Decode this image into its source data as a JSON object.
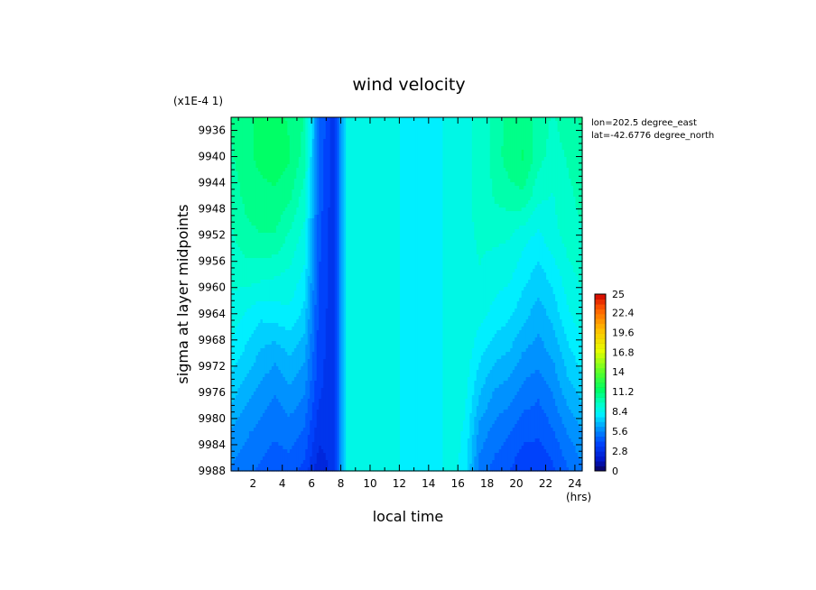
{
  "chart_data": {
    "type": "heatmap",
    "title": "wind velocity",
    "xlabel": "local time",
    "ylabel": "sigma at layer midpoints",
    "x_unit": "(hrs)",
    "y_scale_note": "(x1E-4 1)",
    "info": [
      "lon=202.5 degree_east",
      "lat=-42.6776 degree_north"
    ],
    "xlim": [
      0.5,
      24.5
    ],
    "ylim": [
      9988,
      9934
    ],
    "x_ticks": [
      "2",
      "4",
      "6",
      "8",
      "10",
      "12",
      "14",
      "16",
      "18",
      "20",
      "22",
      "24"
    ],
    "y_ticks": [
      "9936",
      "9940",
      "9944",
      "9948",
      "9952",
      "9956",
      "9960",
      "9964",
      "9968",
      "9972",
      "9976",
      "9980",
      "9984",
      "9988"
    ],
    "x": [
      0.5,
      1.5,
      2.5,
      3.5,
      4.5,
      5.5,
      6.5,
      7.5,
      8.5,
      9.5,
      10.5,
      11.5,
      12.5,
      13.5,
      14.5,
      15.5,
      16.5,
      17.5,
      18.5,
      19.5,
      20.5,
      21.5,
      22.5,
      23.5,
      24.5
    ],
    "y": [
      9934,
      9940,
      9946,
      9952,
      9958,
      9964,
      9970,
      9976,
      9982,
      9988
    ],
    "z": [
      [
        10.5,
        11.0,
        11.2,
        11.4,
        11.0,
        10.4,
        5.0,
        3.0,
        9.0,
        9.0,
        9.0,
        9.0,
        7.8,
        7.7,
        7.8,
        8.8,
        8.9,
        9.2,
        10.0,
        10.7,
        10.8,
        10.2,
        9.6,
        10.2,
        10.5
      ],
      [
        10.3,
        10.9,
        11.3,
        11.5,
        11.2,
        10.1,
        4.8,
        3.0,
        9.0,
        9.0,
        9.0,
        9.0,
        7.8,
        7.7,
        7.8,
        8.8,
        8.9,
        9.2,
        10.0,
        10.8,
        11.2,
        10.0,
        9.4,
        9.8,
        10.3
      ],
      [
        10.0,
        10.6,
        10.9,
        11.0,
        10.6,
        9.4,
        4.6,
        3.0,
        9.0,
        9.0,
        9.0,
        9.0,
        7.8,
        7.7,
        7.8,
        8.8,
        8.9,
        9.2,
        9.8,
        10.1,
        10.3,
        9.2,
        9.0,
        9.5,
        10.0
      ],
      [
        9.6,
        10.2,
        10.4,
        10.4,
        9.6,
        8.8,
        4.4,
        3.0,
        9.0,
        9.0,
        9.0,
        9.0,
        7.8,
        7.7,
        7.8,
        8.8,
        8.9,
        9.1,
        9.2,
        9.1,
        8.6,
        8.2,
        8.8,
        9.3,
        9.6
      ],
      [
        9.2,
        9.4,
        9.3,
        9.1,
        8.9,
        8.2,
        4.2,
        3.0,
        9.0,
        9.0,
        9.0,
        9.0,
        7.8,
        7.7,
        7.8,
        8.8,
        8.9,
        9.0,
        8.7,
        8.5,
        7.9,
        7.4,
        7.9,
        8.8,
        9.2
      ],
      [
        8.8,
        8.3,
        7.8,
        8.0,
        8.2,
        7.4,
        4.0,
        3.0,
        9.0,
        9.0,
        9.0,
        9.0,
        7.8,
        7.7,
        7.8,
        8.8,
        8.9,
        8.6,
        8.1,
        7.8,
        7.2,
        6.6,
        7.2,
        8.2,
        8.8
      ],
      [
        8.1,
        7.5,
        6.9,
        6.5,
        7.0,
        6.5,
        3.8,
        3.0,
        9.0,
        9.0,
        9.0,
        9.0,
        7.8,
        7.7,
        7.8,
        8.8,
        8.8,
        7.8,
        7.2,
        6.9,
        6.2,
        5.9,
        6.4,
        7.4,
        8.1
      ],
      [
        7.2,
        6.6,
        6.0,
        5.6,
        6.1,
        5.6,
        3.6,
        3.0,
        9.0,
        9.0,
        9.0,
        9.0,
        7.8,
        7.7,
        7.8,
        8.8,
        8.5,
        7.0,
        6.2,
        5.9,
        5.3,
        5.0,
        5.6,
        6.6,
        7.2
      ],
      [
        6.2,
        5.7,
        5.3,
        5.0,
        5.2,
        4.8,
        3.0,
        3.0,
        9.0,
        9.0,
        9.0,
        9.0,
        7.8,
        7.7,
        7.8,
        8.8,
        8.2,
        6.0,
        5.3,
        4.9,
        4.4,
        4.3,
        4.8,
        5.6,
        6.2
      ],
      [
        5.4,
        5.1,
        4.7,
        4.4,
        4.6,
        3.9,
        2.3,
        3.0,
        9.0,
        9.0,
        9.0,
        9.0,
        7.8,
        7.7,
        7.8,
        8.8,
        7.9,
        5.2,
        4.6,
        4.2,
        3.6,
        3.6,
        4.0,
        4.8,
        5.4
      ]
    ],
    "colorbar": {
      "min": 0,
      "max": 25,
      "labels": [
        "25",
        "22.4",
        "19.6",
        "16.8",
        "14",
        "11.2",
        "8.4",
        "5.6",
        "2.8",
        "0"
      ]
    }
  }
}
